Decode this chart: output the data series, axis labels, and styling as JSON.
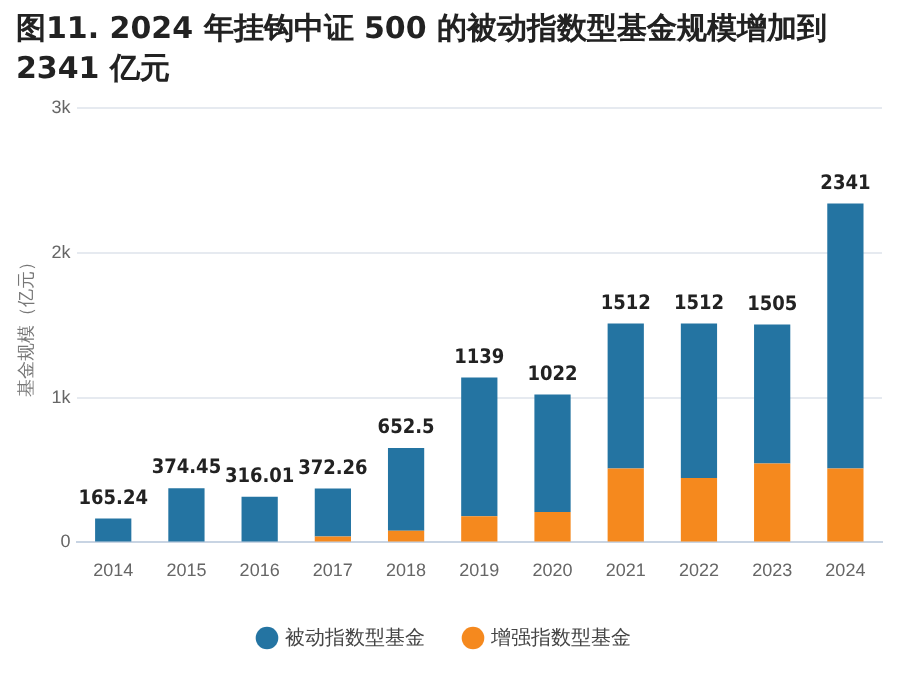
{
  "chart_data": {
    "type": "bar",
    "title": "图11. 2024 年挂钩中证 500 的被动指数型基金规模增加到 2341 亿元",
    "ylabel": "基金规模（亿元）",
    "categories": [
      "2014",
      "2015",
      "2016",
      "2017",
      "2018",
      "2019",
      "2020",
      "2021",
      "2022",
      "2023",
      "2024"
    ],
    "series": [
      {
        "name": "增强指数型基金",
        "color": "#f5891e",
        "values": [
          0,
          0,
          0,
          40,
          80,
          180,
          210,
          510,
          445,
          545,
          510
        ]
      },
      {
        "name": "被动指数型基金",
        "color": "#2474a2",
        "values": [
          165.24,
          374.45,
          316.01,
          332.26,
          572.5,
          959,
          812,
          1002,
          1067,
          960,
          1831
        ]
      }
    ],
    "stacked": true,
    "totals": [
      "165.24",
      "374.45",
      "316.01",
      "372.26",
      "652.5",
      "1139",
      "1022",
      "1512",
      "1512",
      "1505",
      "2341"
    ],
    "ylim": [
      0,
      3000
    ],
    "yticks": [
      0,
      {
        "value": 1000,
        "label": "1k"
      },
      {
        "value": 2000,
        "label": "2k"
      },
      {
        "value": 3000,
        "label": "3k"
      }
    ],
    "grid": "y",
    "legend": "bottom"
  }
}
